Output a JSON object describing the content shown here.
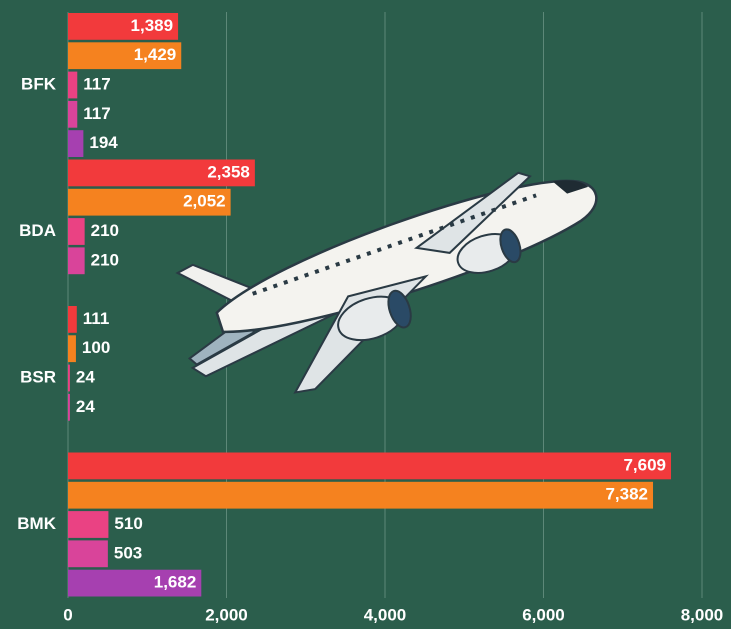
{
  "chart_data": {
    "type": "bar",
    "orientation": "horizontal",
    "categories": [
      "BFK",
      "BDA",
      "BSR",
      "BMK"
    ],
    "series": [
      {
        "color": "#f23a3c",
        "values": [
          1389,
          2358,
          111,
          7609
        ],
        "value_labels": [
          "1,389",
          "2,358",
          "111",
          "7,609"
        ]
      },
      {
        "color": "#f5821f",
        "values": [
          1429,
          2052,
          100,
          7382
        ],
        "value_labels": [
          "1,429",
          "2,052",
          "100",
          "7,382"
        ]
      },
      {
        "color": "#ea4283",
        "values": [
          117,
          210,
          24,
          510
        ],
        "value_labels": [
          "117",
          "210",
          "24",
          "510"
        ]
      },
      {
        "color": "#d9449a",
        "values": [
          117,
          210,
          24,
          503
        ],
        "value_labels": [
          "117",
          "210",
          "24",
          "503"
        ]
      },
      {
        "color": "#a640b0",
        "values": [
          194,
          null,
          null,
          1682
        ],
        "value_labels": [
          "194",
          null,
          null,
          "1,682"
        ]
      }
    ],
    "xlim": [
      0,
      8000
    ],
    "xticks": [
      {
        "value": 0,
        "label": "0"
      },
      {
        "value": 2000,
        "label": "2,000"
      },
      {
        "value": 4000,
        "label": "4,000"
      },
      {
        "value": 6000,
        "label": "6,000"
      },
      {
        "value": 8000,
        "label": "8,000"
      }
    ],
    "grid": true
  }
}
